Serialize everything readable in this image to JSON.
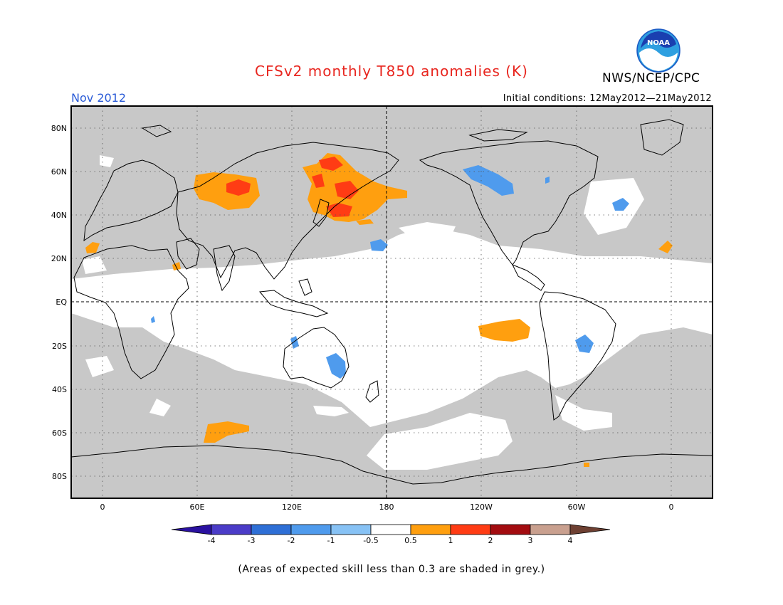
{
  "header": {
    "title": "CFSv2 monthly T850 anomalies (K)",
    "month": "Nov 2012",
    "initial_conditions": "Initial conditions: 12May2012—21May2012",
    "org": "NWS/NCEP/CPC",
    "logo_text": "NOAA"
  },
  "map": {
    "lat_labels": [
      "80N",
      "60N",
      "40N",
      "20N",
      "EQ",
      "20S",
      "40S",
      "60S",
      "80S"
    ],
    "lon_labels": [
      "0",
      "60E",
      "120E",
      "180",
      "120W",
      "60W",
      "0"
    ]
  },
  "colorbar": {
    "labels": [
      "-4",
      "-3",
      "-2",
      "-1",
      "-0.5",
      "0.5",
      "1",
      "2",
      "3",
      "4"
    ],
    "colors": [
      "#2a11a0",
      "#4b3cc8",
      "#2e6fd6",
      "#4f9bed",
      "#87c2f5",
      "#ffffff",
      "#ff9f0f",
      "#ff3c14",
      "#a30c10",
      "#c9a08f",
      "#6e4032"
    ]
  },
  "footnote": "(Areas of expected skill less than 0.3 are shaded in grey.)"
}
